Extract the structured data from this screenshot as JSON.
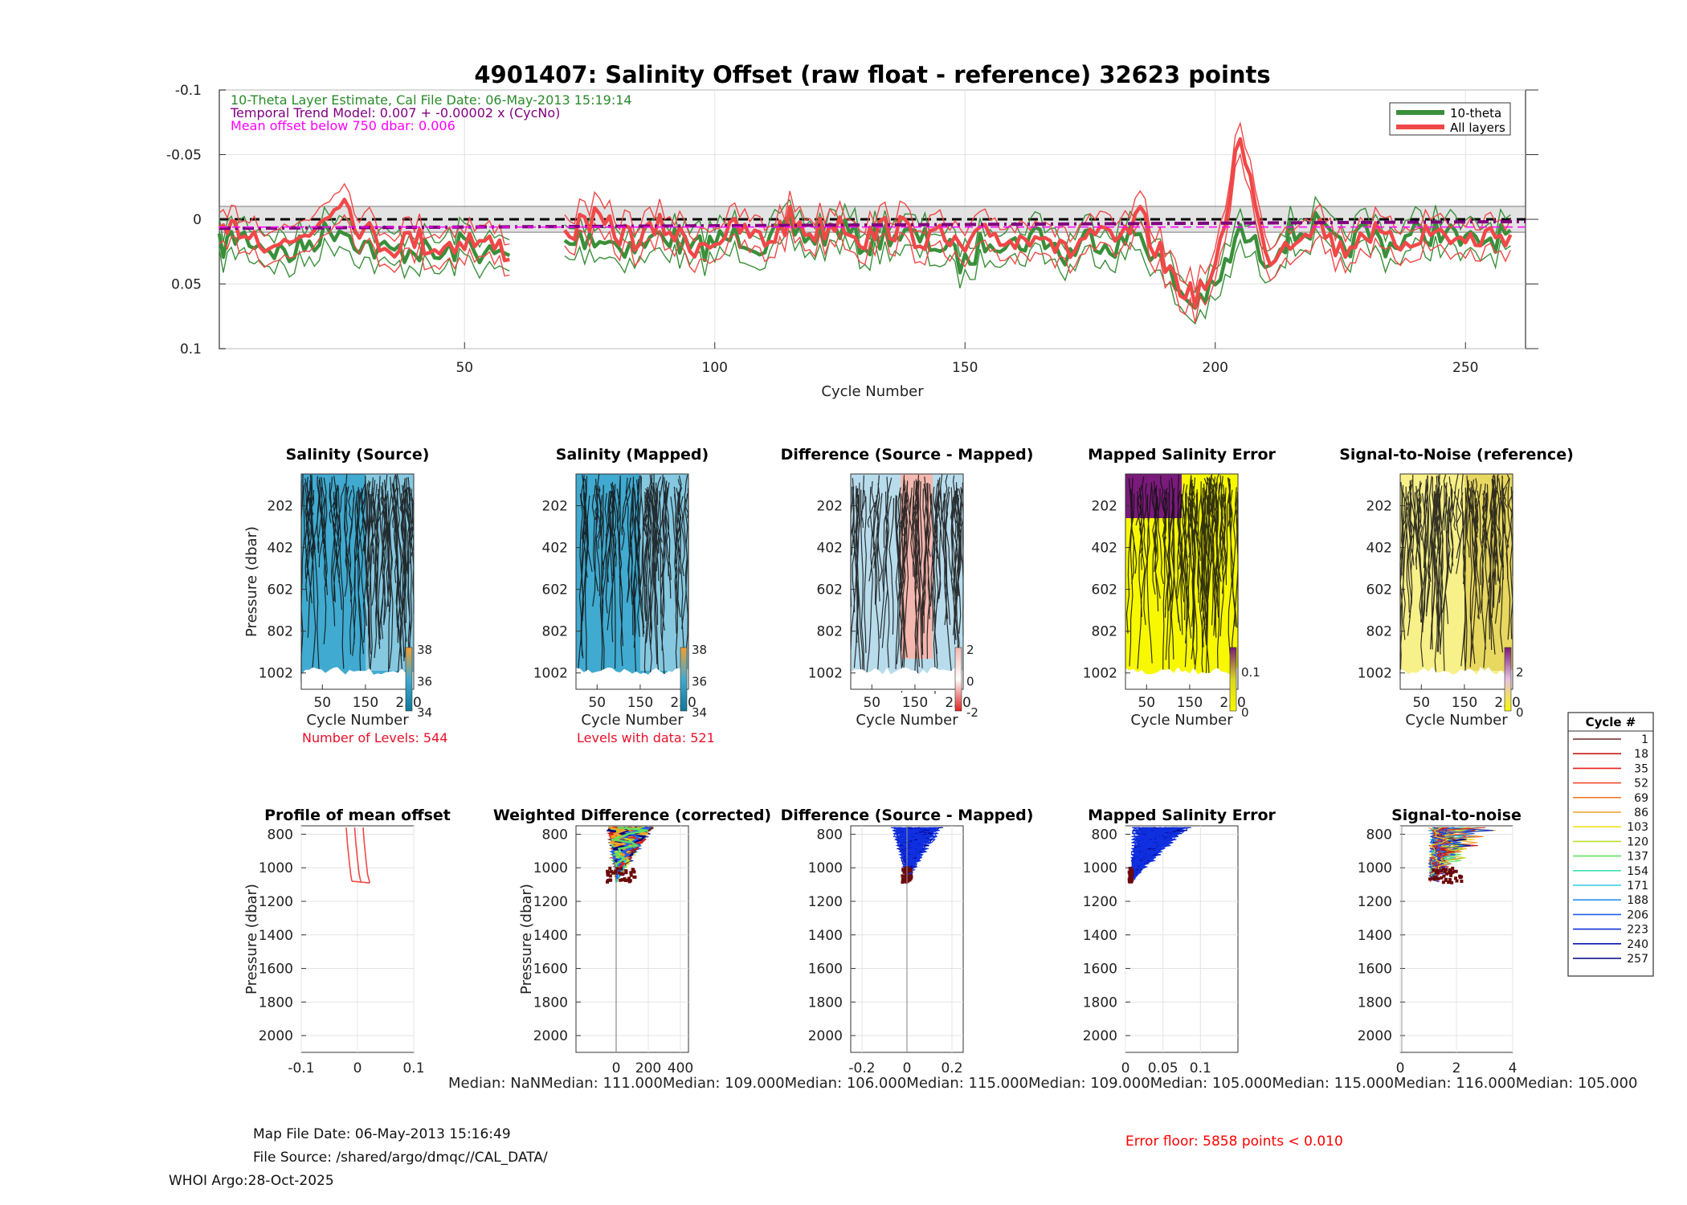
{
  "figure": {
    "width": 2100,
    "height": 1500,
    "footer": {
      "map_file_date": "Map File Date: 06-May-2013 15:16:49",
      "file_source": "File Source: /shared/argo/dmqc//CAL_DATA/",
      "whoi": "WHOI Argo:28-Oct-2025",
      "error_floor": "Error floor:  5858 points < 0.010"
    },
    "median_row": "Median:     NaNMedian: 111.000Median: 109.000Median: 106.000Median: 115.000Median: 109.000Median: 105.000Median: 115.000Median: 116.000Median: 105.000",
    "colors": {
      "theta": "#3a8f3a",
      "all": "#f04848",
      "trend": "#800080",
      "mean": "#ff00ff",
      "error_text": "#ff0000",
      "levels_text": "#e8102a"
    }
  },
  "chart_data": [
    {
      "id": "main",
      "type": "line",
      "title": "4901407: Salinity Offset (raw float - reference)   32623 points",
      "xlabel": "Cycle Number",
      "ylabel": "",
      "xlim": [
        1,
        262
      ],
      "ylim": [
        -0.1,
        0.1
      ],
      "y_reversed": true,
      "x_ticks": [
        "50",
        "100",
        "150",
        "200",
        "250"
      ],
      "y_ticks": [
        "-0.1",
        "-0.05",
        "0",
        "0.05",
        "0.1"
      ],
      "annotations": [
        "10-Theta Layer Estimate, Cal File Date: 06-May-2013 15:19:14",
        "Temporal Trend Model: 0.007 + -0.00002 x (CycNo)",
        "Mean offset below 750 dbar: 0.006"
      ],
      "legend": [
        "10-theta",
        "All layers"
      ],
      "legend_position": "top-right",
      "shaded_band": [
        -0.01,
        0.01
      ],
      "trend": {
        "intercept": 0.007,
        "slope": -2e-05
      },
      "mean_offset": 0.006,
      "series": [
        {
          "name": "10-theta",
          "x": [
            1,
            5,
            10,
            15,
            20,
            25,
            30,
            35,
            40,
            45,
            50,
            55,
            60,
            65,
            70,
            75,
            80,
            85,
            90,
            95,
            100,
            105,
            110,
            115,
            120,
            125,
            130,
            135,
            140,
            145,
            150,
            155,
            160,
            165,
            170,
            175,
            180,
            185,
            190,
            195,
            200,
            205,
            210,
            215,
            220,
            225,
            230,
            235,
            240,
            245,
            250,
            255,
            260
          ],
          "y": [
            0.022,
            0.012,
            0.02,
            0.028,
            0.015,
            0.005,
            0.02,
            0.026,
            0.022,
            0.03,
            0.018,
            0.028,
            0.03,
            null,
            0.02,
            0.012,
            0.018,
            0.022,
            0.01,
            0.025,
            0.018,
            0.012,
            0.02,
            0.008,
            0.015,
            0.006,
            0.02,
            0.01,
            0.015,
            0.02,
            0.035,
            0.012,
            0.02,
            0.01,
            0.03,
            0.012,
            0.02,
            0.01,
            0.04,
            0.065,
            0.055,
            0.01,
            0.03,
            0.012,
            0.005,
            0.025,
            0.01,
            0.02,
            0.012,
            0.008,
            0.02,
            0.015,
            0.012
          ]
        },
        {
          "name": "All layers",
          "x": [
            1,
            5,
            10,
            15,
            20,
            25,
            30,
            35,
            40,
            45,
            50,
            55,
            60,
            65,
            70,
            75,
            80,
            85,
            90,
            95,
            100,
            105,
            110,
            115,
            120,
            125,
            130,
            135,
            140,
            145,
            150,
            155,
            160,
            165,
            170,
            175,
            180,
            185,
            190,
            195,
            200,
            205,
            210,
            215,
            220,
            225,
            230,
            235,
            240,
            245,
            250,
            255,
            260
          ],
          "y": [
            0.018,
            0.005,
            0.015,
            0.02,
            0.005,
            -0.02,
            0.01,
            0.02,
            0.015,
            0.022,
            0.015,
            0.02,
            0.025,
            null,
            0.012,
            0.0,
            0.01,
            0.015,
            0.005,
            0.02,
            0.015,
            0.008,
            0.018,
            0.0,
            0.01,
            0.0,
            0.015,
            0.005,
            0.012,
            0.015,
            0.025,
            0.01,
            0.018,
            0.005,
            0.028,
            0.01,
            0.02,
            0.0,
            0.035,
            0.06,
            0.045,
            -0.07,
            0.03,
            0.015,
            0.0,
            0.025,
            0.008,
            0.02,
            0.012,
            0.01,
            0.018,
            0.012,
            0.01
          ]
        }
      ]
    },
    {
      "id": "salinity_source",
      "type": "heatmap",
      "title": "Salinity (Source)",
      "xlabel": "Cycle Number",
      "ylabel": "Pressure (dbar)",
      "x_ticks": [
        "50",
        "150",
        "250"
      ],
      "y_ticks": [
        "202",
        "402",
        "602",
        "802",
        "1002"
      ],
      "colorbar_ticks": [
        "38",
        "36",
        "34"
      ],
      "note": "Number of Levels: 544"
    },
    {
      "id": "salinity_mapped",
      "type": "heatmap",
      "title": "Salinity (Mapped)",
      "xlabel": "Cycle Number",
      "ylabel": "",
      "x_ticks": [
        "50",
        "150",
        "250"
      ],
      "y_ticks": [
        "202",
        "402",
        "602",
        "802",
        "1002"
      ],
      "colorbar_ticks": [
        "38",
        "36",
        "34"
      ],
      "note": "Levels with data: 521"
    },
    {
      "id": "difference_map",
      "type": "heatmap",
      "title": "Difference (Source - Mapped)",
      "xlabel": "Cycle Number",
      "ylabel": "",
      "x_ticks": [
        "50",
        "150",
        "250"
      ],
      "y_ticks": [
        "202",
        "402",
        "602",
        "802",
        "1002"
      ],
      "colorbar_ticks": [
        "2",
        "0",
        "-2"
      ]
    },
    {
      "id": "mapped_error_map",
      "type": "heatmap",
      "title": "Mapped Salinity Error",
      "xlabel": "Cycle Number",
      "ylabel": "",
      "x_ticks": [
        "50",
        "150",
        "250"
      ],
      "y_ticks": [
        "202",
        "402",
        "602",
        "802",
        "1002"
      ],
      "colorbar_ticks": [
        "0.1",
        "0"
      ]
    },
    {
      "id": "snr_map",
      "type": "heatmap",
      "title": "Signal-to-Noise (reference)",
      "xlabel": "Cycle Number",
      "ylabel": "",
      "x_ticks": [
        "50",
        "150",
        "250"
      ],
      "y_ticks": [
        "202",
        "402",
        "602",
        "802",
        "1002"
      ],
      "colorbar_ticks": [
        "2",
        "0"
      ]
    },
    {
      "id": "profile_mean_offset",
      "type": "line",
      "title": "Profile of mean offset",
      "xlabel": "",
      "ylabel": "Pressure (dbar)",
      "xlim": [
        -0.1,
        0.1
      ],
      "ylim": [
        750,
        2100
      ],
      "x_ticks": [
        "-0.1",
        "0",
        "0.1"
      ],
      "y_ticks": [
        "800",
        "1000",
        "1200",
        "1400",
        "1600",
        "1800",
        "2000"
      ],
      "series": [
        {
          "name": "mean",
          "x": [
            -0.005,
            -0.003,
            0.0,
            0.003,
            0.006
          ],
          "y": [
            760,
            850,
            950,
            1040,
            1085
          ]
        },
        {
          "name": "lower",
          "x": [
            -0.02,
            -0.018,
            -0.015,
            -0.012,
            -0.01
          ],
          "y": [
            760,
            850,
            950,
            1040,
            1080
          ]
        },
        {
          "name": "upper",
          "x": [
            0.01,
            0.012,
            0.015,
            0.018,
            0.022
          ],
          "y": [
            760,
            850,
            950,
            1040,
            1090
          ]
        }
      ]
    },
    {
      "id": "weighted_difference",
      "type": "scatter",
      "title": "Weighted Difference (corrected)",
      "xlabel": "",
      "ylabel": "Pressure (dbar)",
      "xlim": [
        -250,
        450
      ],
      "ylim": [
        750,
        2100
      ],
      "x_ticks": [
        "0",
        "200",
        "400"
      ],
      "y_ticks": [
        "800",
        "1000",
        "1200",
        "1400",
        "1600",
        "1800",
        "2000"
      ]
    },
    {
      "id": "difference_profile",
      "type": "line",
      "title": "Difference (Source - Mapped)",
      "xlabel": "",
      "ylabel": "",
      "xlim": [
        -0.25,
        0.25
      ],
      "ylim": [
        750,
        2100
      ],
      "x_ticks": [
        "-0.2",
        "0",
        "0.2"
      ],
      "y_ticks": [
        "800",
        "1000",
        "1200",
        "1400",
        "1600",
        "1800",
        "2000"
      ]
    },
    {
      "id": "mapped_error_profile",
      "type": "line",
      "title": "Mapped Salinity Error",
      "xlabel": "",
      "ylabel": "",
      "xlim": [
        0,
        0.15
      ],
      "ylim": [
        750,
        2100
      ],
      "x_ticks": [
        "0",
        "0.05",
        "0.1"
      ],
      "y_ticks": [
        "800",
        "1000",
        "1200",
        "1400",
        "1600",
        "1800",
        "2000"
      ]
    },
    {
      "id": "snr_profile",
      "type": "line",
      "title": "Signal-to-noise",
      "xlabel": "",
      "ylabel": "",
      "xlim": [
        0,
        4
      ],
      "ylim": [
        750,
        2100
      ],
      "x_ticks": [
        "0",
        "2",
        "4"
      ],
      "y_ticks": [
        "800",
        "1000",
        "1200",
        "1400",
        "1600",
        "1800",
        "2000"
      ]
    },
    {
      "id": "cycle_legend",
      "type": "table",
      "title": "Cycle #",
      "entries": [
        "1",
        "18",
        "35",
        "52",
        "69",
        "86",
        "103",
        "120",
        "137",
        "154",
        "171",
        "188",
        "206",
        "223",
        "240",
        "257"
      ],
      "entry_colors": [
        "#6b2a2a",
        "#c81a1a",
        "#e62020",
        "#f04a28",
        "#f07a28",
        "#f0a028",
        "#f0e020",
        "#b8e030",
        "#60e060",
        "#40e0b0",
        "#30c8e0",
        "#3090f0",
        "#2060f0",
        "#1030d8",
        "#0818b0",
        "#000080"
      ]
    }
  ]
}
